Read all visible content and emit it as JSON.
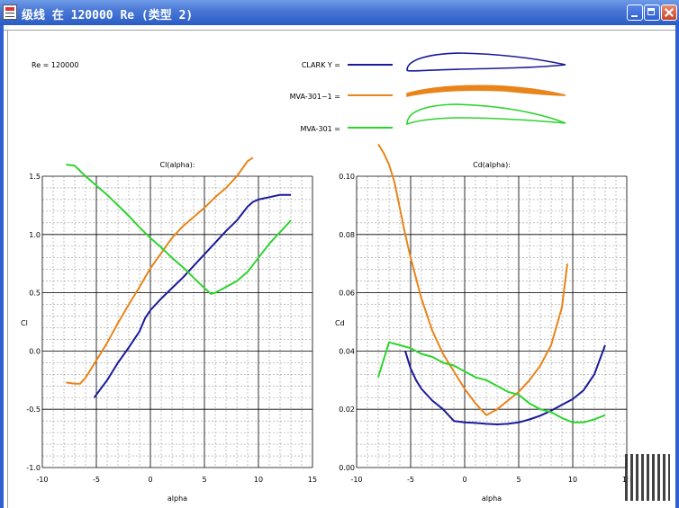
{
  "window": {
    "title": "级线 在 120000 Re (类型 2)"
  },
  "header": {
    "re_label": "Re = 120000"
  },
  "legend": [
    {
      "name": "CLARK Y =",
      "color": "#1a1a9a"
    },
    {
      "name": "MVA-301~1 =",
      "color": "#e8841a"
    },
    {
      "name": "MVA-301 =",
      "color": "#2ed42e"
    }
  ],
  "chart_data": [
    {
      "type": "line",
      "title": "Cl(alpha):",
      "xlabel": "alpha",
      "ylabel": "Cl",
      "xlim": [
        -10,
        15
      ],
      "ylim": [
        -1.0,
        1.5
      ],
      "xticks": [
        "-10",
        "-5",
        "0",
        "5",
        "10",
        "15"
      ],
      "yticks": [
        "1.5",
        "1.0",
        "0.5",
        "0.0",
        "-0.5",
        "-1.0"
      ],
      "grid": true,
      "series": [
        {
          "name": "CLARK Y",
          "color": "#1a1a9a",
          "x": [
            -5.2,
            -4,
            -3,
            -2,
            -1,
            -0.5,
            0,
            1,
            2,
            3,
            4,
            5,
            6,
            7,
            8,
            8.5,
            9,
            9.5,
            10,
            11,
            12,
            13
          ],
          "y": [
            -0.4,
            -0.25,
            -0.1,
            0.03,
            0.17,
            0.28,
            0.35,
            0.45,
            0.54,
            0.63,
            0.73,
            0.83,
            0.93,
            1.03,
            1.12,
            1.18,
            1.24,
            1.28,
            1.3,
            1.32,
            1.34,
            1.34
          ]
        },
        {
          "name": "MVA-301~1",
          "color": "#e8841a",
          "x": [
            -7.8,
            -7,
            -6.5,
            -6,
            -5,
            -4,
            -3,
            -2,
            -1,
            0,
            1,
            2,
            3,
            4,
            5,
            6,
            7,
            8,
            9,
            9.5
          ],
          "y": [
            -0.27,
            -0.28,
            -0.28,
            -0.23,
            -0.08,
            0.07,
            0.24,
            0.4,
            0.55,
            0.71,
            0.84,
            0.97,
            1.07,
            1.15,
            1.23,
            1.32,
            1.4,
            1.5,
            1.63,
            1.66
          ]
        },
        {
          "name": "MVA-301",
          "color": "#2ed42e",
          "x": [
            -7.8,
            -7,
            -6,
            -5,
            -4,
            -3,
            -2,
            -1,
            0,
            1,
            2,
            3,
            4,
            5,
            5.6,
            6,
            7,
            8,
            9,
            10,
            11,
            12,
            13
          ],
          "y": [
            1.6,
            1.59,
            1.5,
            1.42,
            1.34,
            1.25,
            1.16,
            1.06,
            0.97,
            0.89,
            0.8,
            0.72,
            0.63,
            0.54,
            0.49,
            0.5,
            0.55,
            0.6,
            0.68,
            0.8,
            0.92,
            1.02,
            1.12
          ]
        }
      ]
    },
    {
      "type": "line",
      "title": "Cd(alpha):",
      "xlabel": "alpha",
      "ylabel": "Cd",
      "xlim": [
        -10,
        15
      ],
      "ylim": [
        0.0,
        0.1
      ],
      "xticks": [
        "-10",
        "-5",
        "0",
        "5",
        "10",
        "15"
      ],
      "yticks": [
        "0.10",
        "0.08",
        "0.06",
        "0.04",
        "0.02",
        "0.00"
      ],
      "grid": true,
      "series": [
        {
          "name": "CLARK Y",
          "color": "#1a1a9a",
          "x": [
            -5.5,
            -5,
            -4.5,
            -4,
            -3,
            -2,
            -1,
            0,
            1,
            2,
            3,
            4,
            5,
            6,
            7,
            8,
            9,
            10,
            11,
            12,
            13
          ],
          "y": [
            0.04,
            0.034,
            0.03,
            0.027,
            0.023,
            0.02,
            0.016,
            0.0155,
            0.0153,
            0.015,
            0.0148,
            0.015,
            0.0155,
            0.0165,
            0.0178,
            0.0195,
            0.0215,
            0.0235,
            0.0265,
            0.032,
            0.042
          ]
        },
        {
          "name": "MVA-301~1",
          "color": "#e8841a",
          "x": [
            -8,
            -7.5,
            -7,
            -6.5,
            -6,
            -5.5,
            -5,
            -4,
            -3,
            -2,
            -1,
            0,
            1,
            2,
            3,
            4,
            5,
            6,
            7,
            8,
            9,
            9.5
          ],
          "y": [
            0.111,
            0.108,
            0.104,
            0.098,
            0.089,
            0.08,
            0.072,
            0.058,
            0.047,
            0.039,
            0.033,
            0.027,
            0.022,
            0.018,
            0.02,
            0.023,
            0.026,
            0.03,
            0.035,
            0.042,
            0.055,
            0.07
          ]
        },
        {
          "name": "MVA-301",
          "color": "#2ed42e",
          "x": [
            -8,
            -7,
            -6,
            -5,
            -4,
            -3,
            -2,
            -1,
            0,
            1,
            2,
            3,
            4,
            5,
            6,
            7,
            8,
            9,
            10,
            11,
            12,
            13
          ],
          "y": [
            0.031,
            0.043,
            0.042,
            0.041,
            0.039,
            0.038,
            0.036,
            0.035,
            0.033,
            0.031,
            0.03,
            0.028,
            0.026,
            0.025,
            0.022,
            0.02,
            0.019,
            0.017,
            0.0155,
            0.0155,
            0.0165,
            0.018
          ]
        }
      ]
    }
  ]
}
